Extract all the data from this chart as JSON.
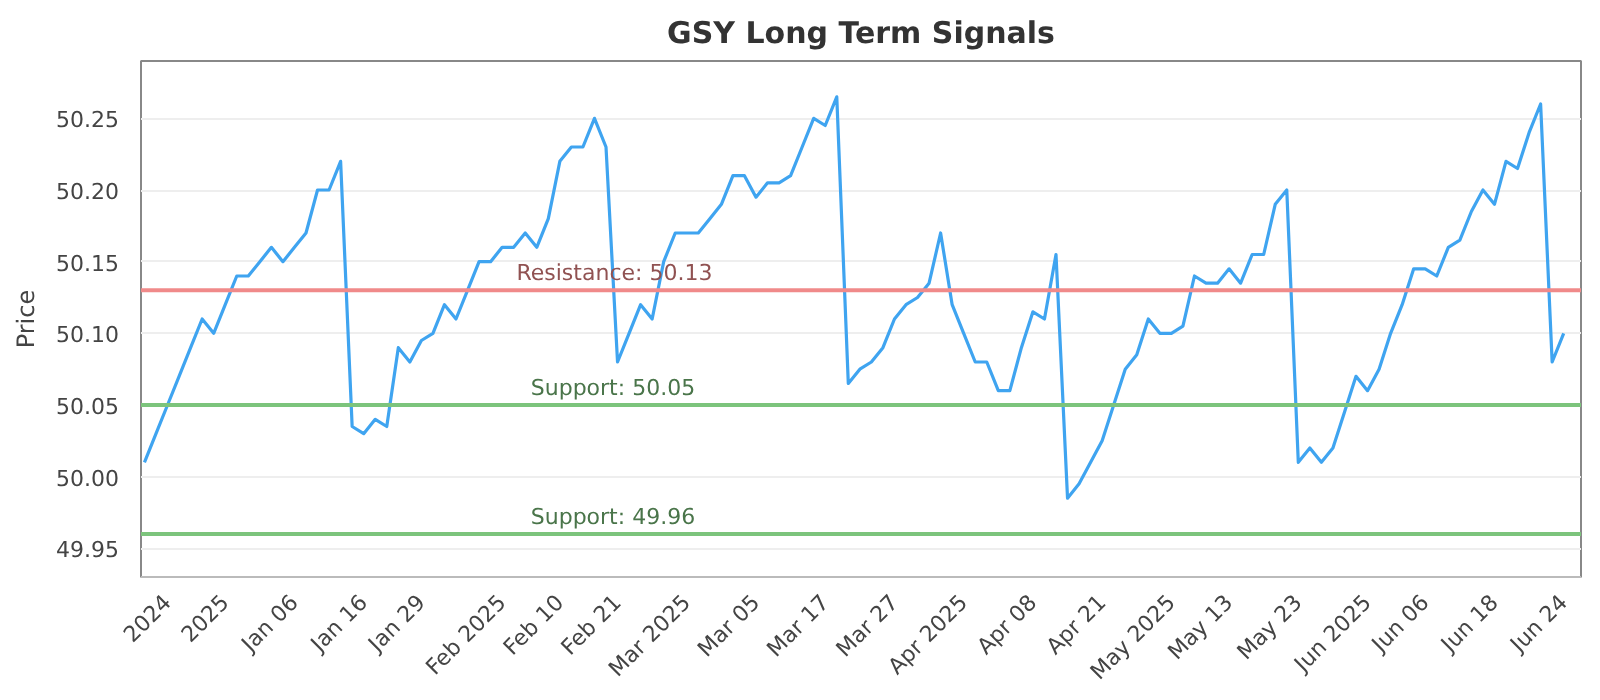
{
  "chart_data": {
    "type": "line",
    "title": "GSY Long Term Signals",
    "ylabel": "Price",
    "categories": [
      null,
      null,
      "2024",
      null,
      null,
      null,
      null,
      "2025",
      null,
      null,
      null,
      null,
      null,
      "Jan 06",
      null,
      null,
      null,
      null,
      null,
      "Jan 16",
      null,
      null,
      null,
      null,
      "Jan 29",
      null,
      null,
      null,
      null,
      null,
      null,
      "Feb 2025",
      null,
      null,
      null,
      null,
      "Feb 10",
      null,
      null,
      null,
      null,
      "Feb 21",
      null,
      null,
      null,
      null,
      null,
      "Mar 2025",
      null,
      null,
      null,
      null,
      null,
      "Mar 05",
      null,
      null,
      null,
      null,
      null,
      "Mar 17",
      null,
      null,
      null,
      null,
      null,
      "Mar 27",
      null,
      null,
      null,
      null,
      null,
      "Apr 2025",
      null,
      null,
      null,
      null,
      null,
      "Apr 08",
      null,
      null,
      null,
      null,
      null,
      "Apr 21",
      null,
      null,
      null,
      null,
      null,
      "May 2025",
      null,
      null,
      null,
      null,
      "May 13",
      null,
      null,
      null,
      null,
      null,
      "May 23",
      null,
      null,
      null,
      null,
      null,
      "Jun 2025",
      null,
      null,
      null,
      null,
      "Jun 06",
      null,
      null,
      null,
      null,
      null,
      "Jun 18",
      null,
      null,
      null,
      null,
      null,
      "Jun 24"
    ],
    "series": [
      {
        "color": "#3fa4f0",
        "values": [
          50.01,
          50.03,
          50.05,
          50.07,
          50.09,
          50.11,
          50.1,
          50.12,
          50.14,
          50.14,
          50.15,
          50.16,
          50.15,
          50.16,
          50.17,
          50.2,
          50.2,
          50.22,
          50.035,
          50.03,
          50.04,
          50.035,
          50.09,
          50.08,
          50.095,
          50.1,
          50.12,
          50.11,
          50.13,
          50.15,
          50.15,
          50.16,
          50.16,
          50.17,
          50.16,
          50.18,
          50.22,
          50.23,
          50.23,
          50.25,
          50.23,
          50.08,
          50.1,
          50.12,
          50.11,
          50.15,
          50.17,
          50.17,
          50.17,
          50.18,
          50.19,
          50.21,
          50.21,
          50.195,
          50.205,
          50.205,
          50.21,
          50.23,
          50.25,
          50.245,
          50.265,
          50.065,
          50.075,
          50.08,
          50.09,
          50.11,
          50.12,
          50.125,
          50.135,
          50.17,
          50.12,
          50.1,
          50.08,
          50.08,
          50.06,
          50.06,
          50.09,
          50.115,
          50.11,
          50.155,
          49.985,
          49.995,
          50.01,
          50.025,
          50.05,
          50.075,
          50.085,
          50.11,
          50.1,
          50.1,
          50.105,
          50.14,
          50.135,
          50.135,
          50.145,
          50.135,
          50.155,
          50.155,
          50.19,
          50.2,
          50.01,
          50.02,
          50.01,
          50.02,
          50.045,
          50.07,
          50.06,
          50.075,
          50.1,
          50.12,
          50.145,
          50.145,
          50.14,
          50.16,
          50.165,
          50.185,
          50.2,
          50.19,
          50.22,
          50.215,
          50.24,
          50.26,
          50.08,
          50.1
        ]
      }
    ],
    "ylim": [
      49.93,
      50.29
    ],
    "yticks": [
      49.95,
      {
        "value": 50.0,
        "label": "50.00"
      },
      50.05,
      {
        "value": 50.1,
        "label": "50.10"
      },
      50.15,
      {
        "value": 50.2,
        "label": "50.20"
      },
      50.25
    ],
    "ref_lines": [
      {
        "axis": "y",
        "value": 50.13,
        "label": "Resistance: 50.13",
        "color": "#f08a8a"
      },
      {
        "axis": "y",
        "value": 50.05,
        "label": "Support: 50.05",
        "color": "#7cc47c"
      },
      {
        "axis": "y",
        "value": 49.96,
        "label": "Support: 49.96",
        "color": "#7cc47c"
      }
    ],
    "grid": "y",
    "marker": "none",
    "line_style": "solid"
  }
}
